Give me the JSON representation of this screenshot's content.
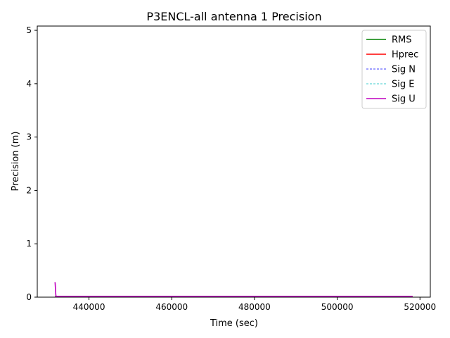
{
  "chart_data": {
    "type": "line",
    "title": "P3ENCL-all antenna 1 Precision",
    "xlabel": "Time (sec)",
    "ylabel": "Precision (m)",
    "xlim": [
      427500,
      522500
    ],
    "ylim": [
      0,
      5.08
    ],
    "xticks": [
      440000,
      460000,
      480000,
      500000,
      520000
    ],
    "xtick_labels": [
      "440000",
      "460000",
      "480000",
      "500000",
      "520000"
    ],
    "yticks": [
      0,
      1,
      2,
      3,
      4,
      5
    ],
    "ytick_labels": [
      "0",
      "1",
      "2",
      "3",
      "4",
      "5"
    ],
    "grid": false,
    "legend_position": "top-right",
    "series": [
      {
        "name": "RMS",
        "color": "#008000",
        "style": "solid",
        "x": [
          431800,
          518200
        ],
        "y": [
          0.01,
          0.01
        ]
      },
      {
        "name": "Hprec",
        "color": "#ff0000",
        "style": "solid",
        "x": [
          431800,
          518200
        ],
        "y": [
          0.012,
          0.012
        ]
      },
      {
        "name": "Sig N",
        "color": "#0000ff",
        "style": "dashed",
        "x": [
          431800,
          518200
        ],
        "y": [
          0.008,
          0.008
        ]
      },
      {
        "name": "Sig E",
        "color": "#00bfbf",
        "style": "dashed",
        "x": [
          431800,
          518200
        ],
        "y": [
          0.008,
          0.008
        ]
      },
      {
        "name": "Sig U",
        "color": "#bf00bf",
        "style": "solid",
        "x": [
          431800,
          431830,
          431860,
          431890,
          431920,
          431950,
          431980,
          432010,
          432040,
          432100,
          440000,
          460000,
          480000,
          500000,
          518200
        ],
        "y": [
          0.28,
          0.25,
          0.21,
          0.17,
          0.12,
          0.08,
          0.05,
          0.03,
          0.02,
          0.015,
          0.015,
          0.015,
          0.015,
          0.015,
          0.015
        ]
      }
    ]
  }
}
